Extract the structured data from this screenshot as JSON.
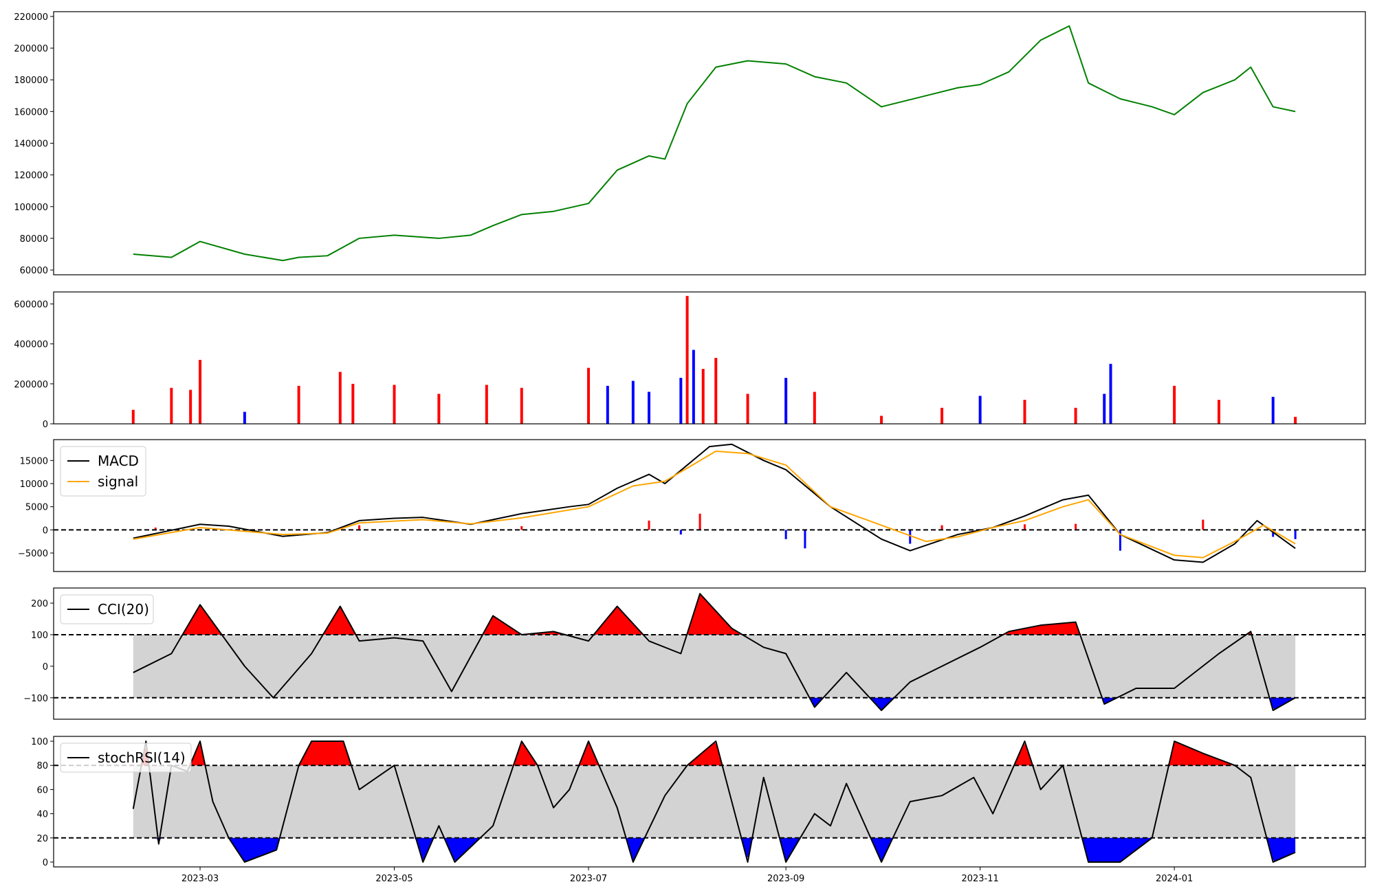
{
  "chart_data": [
    {
      "panel": "price",
      "type": "line",
      "color": "#008000",
      "ylim": [
        57000,
        223000
      ],
      "yticks": [
        60000,
        80000,
        100000,
        120000,
        140000,
        160000,
        180000,
        200000,
        220000
      ],
      "ytick_labels": [
        "60000",
        "80000",
        "100000",
        "120000",
        "140000",
        "160000",
        "180000",
        "200000",
        "220000"
      ],
      "x": [
        "2023-02-08",
        "2023-02-20",
        "2023-03-01",
        "2023-03-15",
        "2023-03-27",
        "2023-04-01",
        "2023-04-10",
        "2023-04-20",
        "2023-05-01",
        "2023-05-15",
        "2023-05-25",
        "2023-06-01",
        "2023-06-10",
        "2023-06-20",
        "2023-07-01",
        "2023-07-10",
        "2023-07-20",
        "2023-07-25",
        "2023-08-01",
        "2023-08-10",
        "2023-08-20",
        "2023-09-01",
        "2023-09-10",
        "2023-09-20",
        "2023-10-01",
        "2023-10-15",
        "2023-10-25",
        "2023-11-01",
        "2023-11-10",
        "2023-11-20",
        "2023-11-29",
        "2023-12-05",
        "2023-12-15",
        "2023-12-25",
        "2024-01-01",
        "2024-01-10",
        "2024-01-20",
        "2024-01-25",
        "2024-02-01",
        "2024-02-08"
      ],
      "values": [
        70000,
        68000,
        78000,
        70000,
        66000,
        68000,
        69000,
        80000,
        82000,
        80000,
        82000,
        88000,
        95000,
        97000,
        102000,
        123000,
        132000,
        130000,
        165000,
        188000,
        192000,
        190000,
        182000,
        178000,
        163000,
        170000,
        175000,
        177000,
        185000,
        205000,
        214000,
        178000,
        168000,
        163000,
        158000,
        172000,
        180000,
        188000,
        163000,
        160000
      ]
    },
    {
      "panel": "volume",
      "type": "bar",
      "ylim": [
        0,
        660000
      ],
      "yticks": [
        0,
        200000,
        400000,
        600000
      ],
      "ytick_labels": [
        "0",
        "200000",
        "400000",
        "600000"
      ],
      "colors": {
        "up": "#ff0000",
        "down": "#0000ff",
        "flat": "#000000"
      },
      "x": [
        "2023-02-08",
        "2023-02-20",
        "2023-02-26",
        "2023-03-01",
        "2023-03-15",
        "2023-04-01",
        "2023-04-14",
        "2023-04-18",
        "2023-05-01",
        "2023-05-15",
        "2023-05-30",
        "2023-06-10",
        "2023-07-01",
        "2023-07-07",
        "2023-07-15",
        "2023-07-20",
        "2023-07-30",
        "2023-08-01",
        "2023-08-03",
        "2023-08-06",
        "2023-08-10",
        "2023-08-20",
        "2023-09-01",
        "2023-09-10",
        "2023-10-01",
        "2023-10-20",
        "2023-11-01",
        "2023-11-15",
        "2023-12-01",
        "2023-12-10",
        "2023-12-12",
        "2024-01-01",
        "2024-01-15",
        "2024-02-01",
        "2024-02-08"
      ],
      "values": [
        70000,
        180000,
        170000,
        320000,
        60000,
        190000,
        260000,
        200000,
        195000,
        150000,
        195000,
        180000,
        280000,
        190000,
        215000,
        160000,
        230000,
        640000,
        370000,
        275000,
        330000,
        150000,
        230000,
        160000,
        40000,
        80000,
        140000,
        120000,
        80000,
        150000,
        300000,
        190000,
        120000,
        135000,
        35000
      ],
      "directions": [
        "up",
        "up",
        "up",
        "up",
        "down",
        "up",
        "up",
        "up",
        "up",
        "up",
        "up",
        "up",
        "up",
        "down",
        "down",
        "down",
        "down",
        "up",
        "down",
        "up",
        "up",
        "up",
        "down",
        "up",
        "up",
        "up",
        "down",
        "up",
        "up",
        "down",
        "down",
        "up",
        "up",
        "down",
        "up"
      ]
    },
    {
      "panel": "macd",
      "type": "line",
      "ylim": [
        -9000,
        19500
      ],
      "yticks": [
        -5000,
        0,
        5000,
        10000,
        15000
      ],
      "ytick_labels": [
        "−5000",
        "0",
        "5000",
        "10000",
        "15000"
      ],
      "zero_line": 0,
      "series": [
        {
          "name": "MACD",
          "color": "#000000",
          "x": [
            "2023-02-08",
            "2023-03-01",
            "2023-03-10",
            "2023-03-27",
            "2023-04-10",
            "2023-04-20",
            "2023-05-01",
            "2023-05-10",
            "2023-05-25",
            "2023-06-10",
            "2023-06-25",
            "2023-07-01",
            "2023-07-10",
            "2023-07-20",
            "2023-07-25",
            "2023-08-01",
            "2023-08-08",
            "2023-08-15",
            "2023-08-25",
            "2023-09-01",
            "2023-09-15",
            "2023-10-01",
            "2023-10-10",
            "2023-10-25",
            "2023-11-05",
            "2023-11-15",
            "2023-11-27",
            "2023-12-05",
            "2023-12-15",
            "2024-01-01",
            "2024-01-10",
            "2024-01-20",
            "2024-01-27",
            "2024-02-08"
          ],
          "values": [
            -1800,
            1200,
            800,
            -1400,
            -600,
            2000,
            2500,
            2700,
            1200,
            3500,
            5000,
            5500,
            9000,
            12000,
            10000,
            14000,
            18000,
            18500,
            15000,
            13000,
            5000,
            -2000,
            -4500,
            -1000,
            500,
            3000,
            6500,
            7500,
            -1000,
            -6500,
            -7000,
            -3000,
            2000,
            -4000
          ]
        },
        {
          "name": "signal",
          "color": "#ffa500",
          "x": [
            "2023-02-08",
            "2023-03-01",
            "2023-03-27",
            "2023-04-10",
            "2023-04-20",
            "2023-05-10",
            "2023-05-25",
            "2023-06-10",
            "2023-07-01",
            "2023-07-15",
            "2023-07-25",
            "2023-08-10",
            "2023-08-20",
            "2023-09-01",
            "2023-09-15",
            "2023-10-01",
            "2023-10-15",
            "2023-10-25",
            "2023-11-05",
            "2023-11-15",
            "2023-11-27",
            "2023-12-05",
            "2023-12-15",
            "2024-01-01",
            "2024-01-10",
            "2024-01-20",
            "2024-01-29",
            "2024-02-08"
          ],
          "values": [
            -2000,
            500,
            -1000,
            -700,
            1500,
            2200,
            1300,
            2600,
            5000,
            9500,
            10500,
            17000,
            16500,
            14000,
            5000,
            1000,
            -2500,
            -1500,
            500,
            2000,
            5000,
            6500,
            -1000,
            -5500,
            -6000,
            -2500,
            1000,
            -3000
          ]
        }
      ],
      "histogram": {
        "x": [
          "2023-02-15",
          "2023-04-20",
          "2023-06-10",
          "2023-07-20",
          "2023-07-30",
          "2023-08-05",
          "2023-09-01",
          "2023-09-07",
          "2023-10-10",
          "2023-10-20",
          "2023-11-15",
          "2023-12-01",
          "2023-12-15",
          "2024-01-10",
          "2024-02-01",
          "2024-02-08"
        ],
        "values": [
          500,
          1000,
          800,
          2000,
          -1000,
          3500,
          -2000,
          -4000,
          -3000,
          1000,
          1200,
          1300,
          -4500,
          2200,
          -1500,
          -2000
        ]
      },
      "legend": {
        "position": "top-left",
        "labels": [
          "MACD",
          "signal"
        ]
      }
    },
    {
      "panel": "cci",
      "type": "line",
      "ylim": [
        -168,
        248
      ],
      "yticks": [
        -100,
        0,
        100,
        200
      ],
      "ytick_labels": [
        "−100",
        "0",
        "100",
        "200"
      ],
      "thresholds": [
        100,
        -100
      ],
      "band": [
        -100,
        100
      ],
      "series": [
        {
          "name": "CCI(20)",
          "color": "#000000",
          "x": [
            "2023-02-08",
            "2023-02-20",
            "2023-03-01",
            "2023-03-15",
            "2023-03-24",
            "2023-04-05",
            "2023-04-14",
            "2023-04-20",
            "2023-05-01",
            "2023-05-10",
            "2023-05-19",
            "2023-06-01",
            "2023-06-10",
            "2023-06-20",
            "2023-07-01",
            "2023-07-10",
            "2023-07-20",
            "2023-07-30",
            "2023-08-05",
            "2023-08-15",
            "2023-08-25",
            "2023-09-01",
            "2023-09-10",
            "2023-09-20",
            "2023-10-01",
            "2023-10-10",
            "2023-10-20",
            "2023-11-01",
            "2023-11-10",
            "2023-11-20",
            "2023-12-01",
            "2023-12-10",
            "2023-12-20",
            "2024-01-01",
            "2024-01-15",
            "2024-01-25",
            "2024-02-01",
            "2024-02-08"
          ],
          "values": [
            -20,
            40,
            195,
            0,
            -100,
            40,
            190,
            80,
            90,
            80,
            -80,
            160,
            100,
            110,
            80,
            190,
            80,
            40,
            230,
            120,
            60,
            40,
            -130,
            -20,
            -140,
            -50,
            0,
            60,
            110,
            130,
            140,
            -120,
            -70,
            -70,
            40,
            110,
            -140,
            -100
          ]
        }
      ],
      "legend": {
        "position": "top-left",
        "labels": [
          "CCI(20)"
        ]
      }
    },
    {
      "panel": "stochrsi",
      "type": "line",
      "ylim": [
        -4,
        104
      ],
      "yticks": [
        0,
        20,
        40,
        60,
        80,
        100
      ],
      "ytick_labels": [
        "0",
        "20",
        "40",
        "60",
        "80",
        "100"
      ],
      "thresholds": [
        80,
        20
      ],
      "band": [
        20,
        80
      ],
      "series": [
        {
          "name": "stochRSI(14)",
          "color": "#000000",
          "x": [
            "2023-02-08",
            "2023-02-12",
            "2023-02-16",
            "2023-02-20",
            "2023-02-25",
            "2023-03-01",
            "2023-03-05",
            "2023-03-10",
            "2023-03-15",
            "2023-03-25",
            "2023-04-01",
            "2023-04-05",
            "2023-04-15",
            "2023-04-20",
            "2023-05-01",
            "2023-05-10",
            "2023-05-15",
            "2023-05-20",
            "2023-06-01",
            "2023-06-10",
            "2023-06-15",
            "2023-06-20",
            "2023-06-25",
            "2023-07-01",
            "2023-07-10",
            "2023-07-15",
            "2023-07-25",
            "2023-08-01",
            "2023-08-10",
            "2023-08-20",
            "2023-08-25",
            "2023-09-01",
            "2023-09-10",
            "2023-09-15",
            "2023-09-20",
            "2023-10-01",
            "2023-10-10",
            "2023-10-20",
            "2023-10-30",
            "2023-11-05",
            "2023-11-15",
            "2023-11-20",
            "2023-11-27",
            "2023-12-05",
            "2023-12-15",
            "2023-12-25",
            "2024-01-01",
            "2024-01-10",
            "2024-01-20",
            "2024-01-25",
            "2024-02-01",
            "2024-02-08"
          ],
          "values": [
            44,
            100,
            15,
            80,
            75,
            100,
            50,
            20,
            0,
            10,
            80,
            100,
            100,
            60,
            80,
            0,
            30,
            0,
            30,
            100,
            80,
            45,
            60,
            100,
            45,
            0,
            55,
            80,
            100,
            0,
            70,
            0,
            40,
            30,
            65,
            0,
            50,
            55,
            70,
            40,
            100,
            60,
            80,
            0,
            0,
            20,
            100,
            90,
            80,
            70,
            0,
            8
          ]
        }
      ],
      "legend": {
        "position": "top-left",
        "labels": [
          "stochRSI(14)"
        ]
      }
    }
  ],
  "x_axis": {
    "range": [
      "2023-01-14",
      "2024-03-01"
    ],
    "ticks": [
      "2023-03-01",
      "2023-05-01",
      "2023-07-01",
      "2023-09-01",
      "2023-11-01",
      "2024-01-01"
    ],
    "tick_labels": [
      "2023-03",
      "2023-05",
      "2023-07",
      "2023-09",
      "2023-11",
      "2024-01"
    ]
  },
  "colors": {
    "up": "#ff0000",
    "down": "#0000ff",
    "band": "#d3d3d3",
    "frame": "#000000"
  }
}
